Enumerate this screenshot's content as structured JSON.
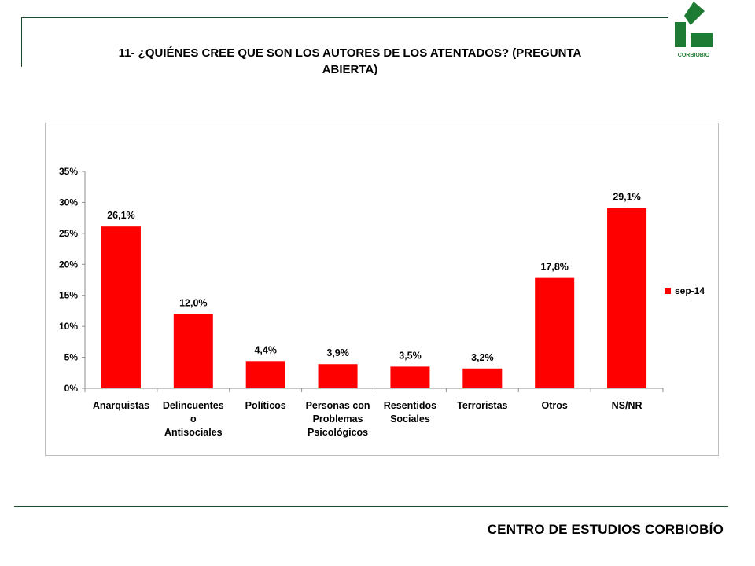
{
  "slide": {
    "title_line1": "11- ¿QUIÉNES CREE QUE SON LOS AUTORES DE LOS ATENTADOS? (PREGUNTA",
    "title_line2": "ABIERTA)",
    "logo_text": "CORBIOBIO",
    "footer": "CENTRO DE ESTUDIOS CORBIOBÍO"
  },
  "colors": {
    "bar": "#ff0000",
    "brand_green": "#1e7b34",
    "frame": "#1f4d2a"
  },
  "chart_data": {
    "type": "bar",
    "categories": [
      [
        "Anarquistas"
      ],
      [
        "Delincuentes",
        "o",
        "Antisociales"
      ],
      [
        "Políticos"
      ],
      [
        "Personas con",
        "Problemas",
        "Psicológicos"
      ],
      [
        "Resentidos",
        "Sociales"
      ],
      [
        "Terroristas"
      ],
      [
        "Otros"
      ],
      [
        "NS/NR"
      ]
    ],
    "series": [
      {
        "name": "sep-14",
        "values": [
          26.1,
          12.0,
          4.4,
          3.9,
          3.5,
          3.2,
          17.8,
          29.1
        ]
      }
    ],
    "data_labels": [
      "26,1%",
      "12,0%",
      "4,4%",
      "3,9%",
      "3,5%",
      "3,2%",
      "17,8%",
      "29,1%"
    ],
    "y_ticks": [
      0,
      5,
      10,
      15,
      20,
      25,
      30,
      35
    ],
    "y_tick_labels": [
      "0%",
      "5%",
      "10%",
      "15%",
      "20%",
      "25%",
      "30%",
      "35%"
    ],
    "ylim": [
      0,
      35
    ],
    "grid": false,
    "legend_position": "right",
    "title": "",
    "xlabel": "",
    "ylabel": ""
  }
}
